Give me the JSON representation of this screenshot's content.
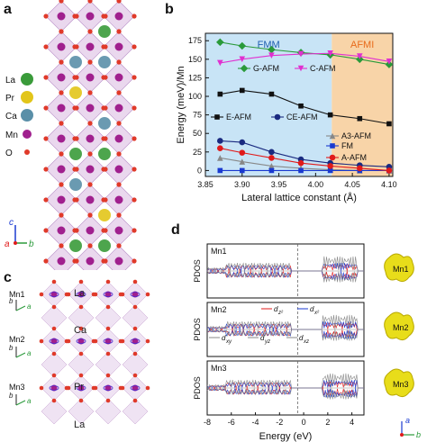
{
  "panels": {
    "a": {
      "letter": "a",
      "legend": [
        "La",
        "Pr",
        "Ca",
        "Mn",
        "O"
      ],
      "legend_colors": [
        "#3a9b3a",
        "#e2c51a",
        "#5a8fa8",
        "#a0208e",
        "#e03a2a"
      ],
      "axes": {
        "c": "c",
        "a": "a",
        "b": "b"
      }
    },
    "b": {
      "letter": "b"
    },
    "c": {
      "letter": "c",
      "mn_labels": [
        "Mn1",
        "Mn2",
        "Mn3"
      ],
      "layer_labels": [
        "La",
        "Ca",
        "Pr",
        "La"
      ],
      "axes": {
        "a": "a",
        "b": "b"
      }
    },
    "d": {
      "letter": "d",
      "subpanels": [
        "Mn1",
        "Mn2",
        "Mn3"
      ],
      "ylabel": "PDOS",
      "xlabel": "Energy (eV)",
      "xticks": [
        "-8",
        "-6",
        "-4",
        "-2",
        "0",
        "2",
        "4"
      ],
      "orbital_legend": [
        "d",
        "d",
        "d",
        "d",
        "d"
      ],
      "orbital_subscripts": [
        "z²",
        "x²",
        "xy",
        "yz",
        "xz"
      ],
      "blob_labels": [
        "Mn1",
        "Mn2",
        "Mn3"
      ],
      "axes": {
        "a": "a",
        "b": "b"
      }
    }
  },
  "chart_data": {
    "type": "line",
    "xlabel": "Lateral lattice constant (Å)",
    "ylabel": "Energy (meV)/Mn",
    "x": [
      3.87,
      3.9,
      3.94,
      3.98,
      4.02,
      4.06,
      4.1
    ],
    "xticks": [
      "3.85",
      "3.90",
      "3.95",
      "4.00",
      "4.05",
      "4.10"
    ],
    "xtick_values": [
      3.85,
      3.9,
      3.95,
      4.0,
      4.05,
      4.1
    ],
    "yticks": [
      "0",
      "25",
      "50",
      "75",
      "100",
      "125",
      "150",
      "175"
    ],
    "ytick_values": [
      0,
      25,
      50,
      75,
      100,
      125,
      150,
      175
    ],
    "xlim": [
      3.85,
      4.105
    ],
    "ylim": [
      -8,
      185
    ],
    "regions": [
      {
        "label": "FMM",
        "from": 3.85,
        "to": 4.022,
        "color": "#c8e4f6",
        "text_color": "#1f5fb0"
      },
      {
        "label": "AFMI",
        "from": 4.022,
        "to": 4.105,
        "color": "#f8d4a8",
        "text_color": "#e86a1a"
      }
    ],
    "series": [
      {
        "name": "G-AFM",
        "color": "#2a9a3a",
        "marker": "diamond",
        "values": [
          173,
          168,
          163,
          159,
          156,
          150,
          143
        ]
      },
      {
        "name": "C-AFM",
        "color": "#e030d0",
        "marker": "triangle-down",
        "values": [
          145,
          150,
          155,
          157,
          158,
          154,
          147
        ]
      },
      {
        "name": "E-AFM",
        "color": "#111111",
        "marker": "square",
        "values": [
          103,
          108,
          103,
          87,
          75,
          70,
          63
        ]
      },
      {
        "name": "CE-AFM",
        "color": "#1a2a80",
        "marker": "circle",
        "values": [
          40,
          38,
          25,
          15,
          10,
          7,
          5
        ]
      },
      {
        "name": "A3-AFM",
        "color": "#888888",
        "marker": "triangle-up",
        "values": [
          17,
          12,
          6,
          3,
          1,
          0,
          0
        ]
      },
      {
        "name": "FM",
        "color": "#1a3ad0",
        "marker": "square",
        "values": [
          0,
          0,
          0,
          0,
          0,
          0,
          0
        ]
      },
      {
        "name": "A-AFM",
        "color": "#e01a1a",
        "marker": "circle",
        "values": [
          30,
          24,
          17,
          10,
          6,
          3,
          0
        ]
      }
    ]
  }
}
